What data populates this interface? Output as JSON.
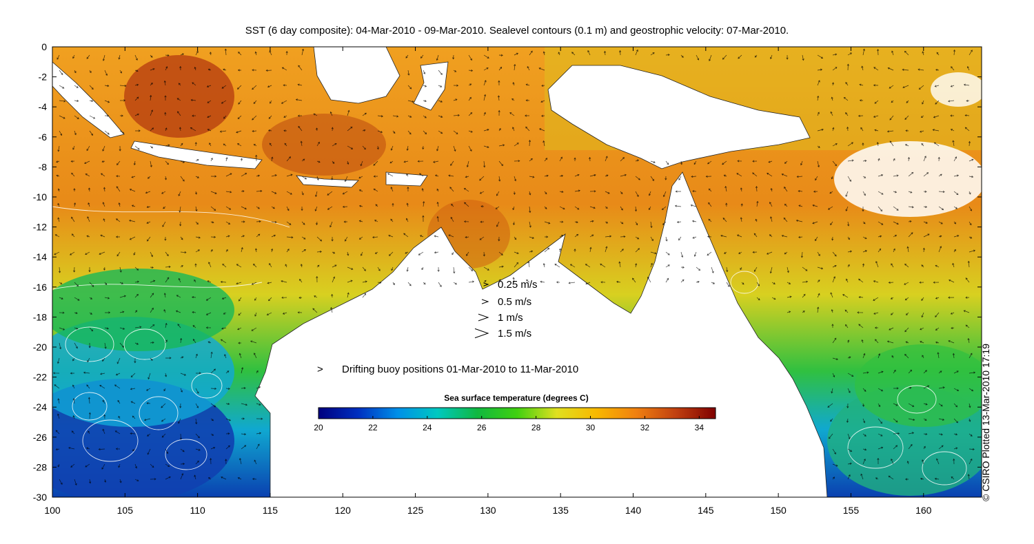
{
  "title": "SST (6 day composite): 04-Mar-2010 - 09-Mar-2010. Sealevel contours (0.1 m) and geostrophic velocity: 07-Mar-2010.",
  "credit": "© CSIRO Plotted 13-Mar-2010 17:19",
  "map": {
    "lon_range": [
      100,
      164
    ],
    "lat_range": [
      -30,
      0
    ],
    "x_ticks": [
      "100",
      "105",
      "110",
      "115",
      "120",
      "125",
      "130",
      "135",
      "140",
      "145",
      "150",
      "155",
      "160"
    ],
    "y_ticks": [
      "0",
      "-2",
      "-4",
      "-6",
      "-8",
      "-10",
      "-12",
      "-14",
      "-16",
      "-18",
      "-20",
      "-22",
      "-24",
      "-26",
      "-28",
      "-30"
    ]
  },
  "velocity_legend": [
    {
      "label": "0.25 m/s",
      "speed": 0.25
    },
    {
      "label": "0.5 m/s",
      "speed": 0.5
    },
    {
      "label": "1 m/s",
      "speed": 1
    },
    {
      "label": "1.5 m/s",
      "speed": 1.5
    }
  ],
  "buoy_legend": {
    "symbol": ">",
    "label": "Drifting buoy positions 01-Mar-2010 to 11-Mar-2010",
    "color": "#e040e0"
  },
  "colorbar": {
    "label": "Sea surface temperature (degrees C)",
    "range": [
      20,
      34.6
    ],
    "ticks": [
      "20",
      "22",
      "24",
      "26",
      "28",
      "30",
      "32",
      "34"
    ],
    "colors": [
      "#00007f",
      "#0030c0",
      "#0090e8",
      "#00c8c0",
      "#10b840",
      "#40d010",
      "#e0e020",
      "#f8b800",
      "#f08010",
      "#c04010",
      "#800000"
    ]
  }
}
